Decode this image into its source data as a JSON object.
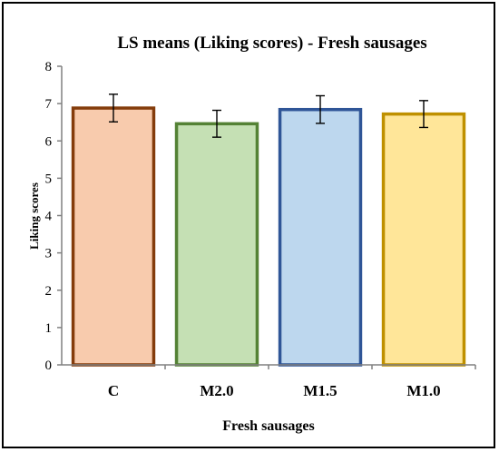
{
  "chart_data": {
    "type": "bar",
    "title": "LS means (Liking scores) - Fresh sausages",
    "xlabel": "Fresh sausages",
    "ylabel": "Liking scores",
    "categories": [
      "C",
      "M2.0",
      "M1.5",
      "M1.0"
    ],
    "values": [
      6.88,
      6.46,
      6.84,
      6.72
    ],
    "error": [
      0.37,
      0.36,
      0.37,
      0.36
    ],
    "ylim": [
      0,
      8
    ],
    "yticks": [
      "0",
      "1",
      "2",
      "3",
      "4",
      "5",
      "6",
      "7",
      "8"
    ],
    "grid": false,
    "legend": "none",
    "colors": {
      "fills": [
        "#F8CBAD",
        "#C5E0B4",
        "#BDD7EE",
        "#FFE699"
      ],
      "strokes": [
        "#843C0C",
        "#548235",
        "#2F5597",
        "#BF9000"
      ],
      "axis": "#808080",
      "error_bar": "#000000"
    }
  }
}
